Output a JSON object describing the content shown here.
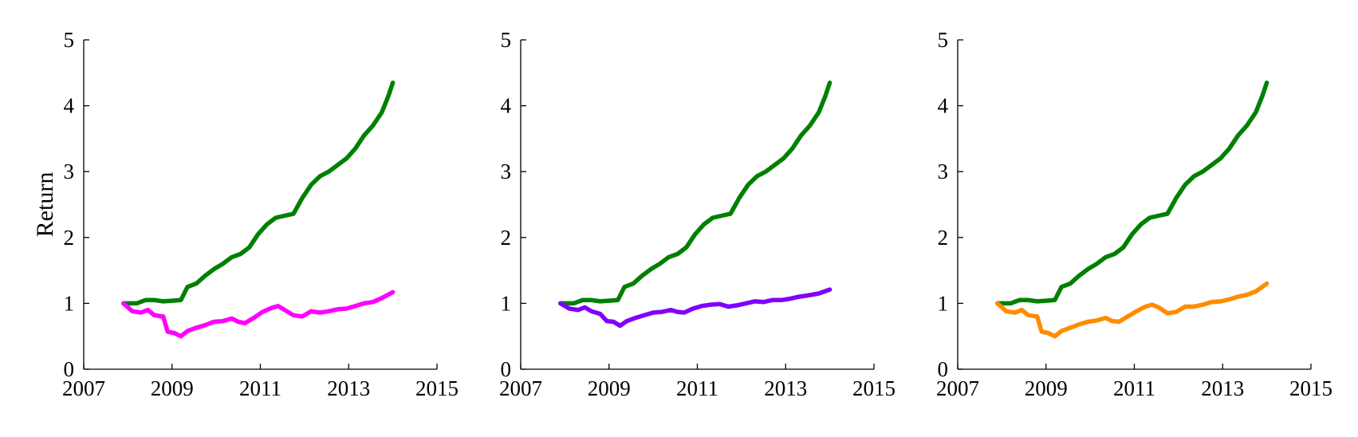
{
  "chart_data": [
    {
      "type": "line",
      "ylabel": "Return",
      "xlim": [
        2007,
        2015
      ],
      "ylim": [
        0,
        5
      ],
      "xticks": [
        "2007",
        "2009",
        "2011",
        "2013",
        "2015"
      ],
      "yticks": [
        "0",
        "1",
        "2",
        "3",
        "4",
        "5"
      ],
      "grid": false,
      "series": [
        {
          "color": "#008000",
          "points": [
            [
              2007.9,
              1.0
            ],
            [
              2008.2,
              1.0
            ],
            [
              2008.4,
              1.05
            ],
            [
              2008.6,
              1.05
            ],
            [
              2008.8,
              1.03
            ],
            [
              2009.0,
              1.04
            ],
            [
              2009.2,
              1.05
            ],
            [
              2009.35,
              1.25
            ],
            [
              2009.55,
              1.3
            ],
            [
              2009.75,
              1.42
            ],
            [
              2009.95,
              1.52
            ],
            [
              2010.15,
              1.6
            ],
            [
              2010.35,
              1.7
            ],
            [
              2010.55,
              1.75
            ],
            [
              2010.75,
              1.85
            ],
            [
              2010.95,
              2.05
            ],
            [
              2011.15,
              2.2
            ],
            [
              2011.35,
              2.3
            ],
            [
              2011.55,
              2.33
            ],
            [
              2011.75,
              2.36
            ],
            [
              2011.95,
              2.6
            ],
            [
              2012.15,
              2.8
            ],
            [
              2012.35,
              2.93
            ],
            [
              2012.55,
              3.0
            ],
            [
              2012.75,
              3.1
            ],
            [
              2012.95,
              3.2
            ],
            [
              2013.15,
              3.35
            ],
            [
              2013.35,
              3.55
            ],
            [
              2013.55,
              3.7
            ],
            [
              2013.75,
              3.9
            ],
            [
              2013.9,
              4.15
            ],
            [
              2014.0,
              4.35
            ]
          ]
        },
        {
          "color": "#ff00ff",
          "points": [
            [
              2007.9,
              1.0
            ],
            [
              2008.1,
              0.88
            ],
            [
              2008.3,
              0.86
            ],
            [
              2008.45,
              0.9
            ],
            [
              2008.6,
              0.82
            ],
            [
              2008.8,
              0.8
            ],
            [
              2008.9,
              0.57
            ],
            [
              2009.05,
              0.55
            ],
            [
              2009.2,
              0.5
            ],
            [
              2009.35,
              0.58
            ],
            [
              2009.55,
              0.63
            ],
            [
              2009.75,
              0.67
            ],
            [
              2009.95,
              0.72
            ],
            [
              2010.15,
              0.73
            ],
            [
              2010.35,
              0.77
            ],
            [
              2010.5,
              0.72
            ],
            [
              2010.65,
              0.7
            ],
            [
              2010.85,
              0.78
            ],
            [
              2011.05,
              0.87
            ],
            [
              2011.25,
              0.93
            ],
            [
              2011.4,
              0.96
            ],
            [
              2011.55,
              0.9
            ],
            [
              2011.75,
              0.82
            ],
            [
              2011.95,
              0.8
            ],
            [
              2012.15,
              0.88
            ],
            [
              2012.35,
              0.86
            ],
            [
              2012.55,
              0.88
            ],
            [
              2012.75,
              0.91
            ],
            [
              2012.95,
              0.92
            ],
            [
              2013.15,
              0.96
            ],
            [
              2013.35,
              1.0
            ],
            [
              2013.55,
              1.02
            ],
            [
              2013.75,
              1.08
            ],
            [
              2014.0,
              1.17
            ]
          ]
        }
      ]
    },
    {
      "type": "line",
      "ylabel": "",
      "xlim": [
        2007,
        2015
      ],
      "ylim": [
        0,
        5
      ],
      "xticks": [
        "2007",
        "2009",
        "2011",
        "2013",
        "2015"
      ],
      "yticks": [
        "0",
        "1",
        "2",
        "3",
        "4",
        "5"
      ],
      "grid": false,
      "series": [
        {
          "color": "#008000",
          "points": [
            [
              2007.9,
              1.0
            ],
            [
              2008.2,
              1.0
            ],
            [
              2008.4,
              1.05
            ],
            [
              2008.6,
              1.05
            ],
            [
              2008.8,
              1.03
            ],
            [
              2009.0,
              1.04
            ],
            [
              2009.2,
              1.05
            ],
            [
              2009.35,
              1.25
            ],
            [
              2009.55,
              1.3
            ],
            [
              2009.75,
              1.42
            ],
            [
              2009.95,
              1.52
            ],
            [
              2010.15,
              1.6
            ],
            [
              2010.35,
              1.7
            ],
            [
              2010.55,
              1.75
            ],
            [
              2010.75,
              1.85
            ],
            [
              2010.95,
              2.05
            ],
            [
              2011.15,
              2.2
            ],
            [
              2011.35,
              2.3
            ],
            [
              2011.55,
              2.33
            ],
            [
              2011.75,
              2.36
            ],
            [
              2011.95,
              2.6
            ],
            [
              2012.15,
              2.8
            ],
            [
              2012.35,
              2.93
            ],
            [
              2012.55,
              3.0
            ],
            [
              2012.75,
              3.1
            ],
            [
              2012.95,
              3.2
            ],
            [
              2013.15,
              3.35
            ],
            [
              2013.35,
              3.55
            ],
            [
              2013.55,
              3.7
            ],
            [
              2013.75,
              3.9
            ],
            [
              2013.9,
              4.15
            ],
            [
              2014.0,
              4.35
            ]
          ]
        },
        {
          "color": "#8000ff",
          "points": [
            [
              2007.9,
              1.0
            ],
            [
              2008.1,
              0.92
            ],
            [
              2008.3,
              0.9
            ],
            [
              2008.45,
              0.94
            ],
            [
              2008.6,
              0.88
            ],
            [
              2008.8,
              0.84
            ],
            [
              2008.95,
              0.73
            ],
            [
              2009.1,
              0.72
            ],
            [
              2009.25,
              0.66
            ],
            [
              2009.4,
              0.73
            ],
            [
              2009.6,
              0.78
            ],
            [
              2009.8,
              0.82
            ],
            [
              2010.0,
              0.86
            ],
            [
              2010.2,
              0.87
            ],
            [
              2010.4,
              0.9
            ],
            [
              2010.55,
              0.87
            ],
            [
              2010.7,
              0.86
            ],
            [
              2010.9,
              0.92
            ],
            [
              2011.1,
              0.96
            ],
            [
              2011.3,
              0.98
            ],
            [
              2011.5,
              0.99
            ],
            [
              2011.7,
              0.95
            ],
            [
              2011.9,
              0.97
            ],
            [
              2012.1,
              1.0
            ],
            [
              2012.3,
              1.03
            ],
            [
              2012.5,
              1.02
            ],
            [
              2012.7,
              1.05
            ],
            [
              2012.9,
              1.05
            ],
            [
              2013.1,
              1.07
            ],
            [
              2013.3,
              1.1
            ],
            [
              2013.5,
              1.12
            ],
            [
              2013.75,
              1.15
            ],
            [
              2014.0,
              1.21
            ]
          ]
        }
      ]
    },
    {
      "type": "line",
      "ylabel": "",
      "xlim": [
        2007,
        2015
      ],
      "ylim": [
        0,
        5
      ],
      "xticks": [
        "2007",
        "2009",
        "2011",
        "2013",
        "2015"
      ],
      "yticks": [
        "0",
        "1",
        "2",
        "3",
        "4",
        "5"
      ],
      "grid": false,
      "series": [
        {
          "color": "#008000",
          "points": [
            [
              2007.9,
              1.0
            ],
            [
              2008.2,
              1.0
            ],
            [
              2008.4,
              1.05
            ],
            [
              2008.6,
              1.05
            ],
            [
              2008.8,
              1.03
            ],
            [
              2009.0,
              1.04
            ],
            [
              2009.2,
              1.05
            ],
            [
              2009.35,
              1.25
            ],
            [
              2009.55,
              1.3
            ],
            [
              2009.75,
              1.42
            ],
            [
              2009.95,
              1.52
            ],
            [
              2010.15,
              1.6
            ],
            [
              2010.35,
              1.7
            ],
            [
              2010.55,
              1.75
            ],
            [
              2010.75,
              1.85
            ],
            [
              2010.95,
              2.05
            ],
            [
              2011.15,
              2.2
            ],
            [
              2011.35,
              2.3
            ],
            [
              2011.55,
              2.33
            ],
            [
              2011.75,
              2.36
            ],
            [
              2011.95,
              2.6
            ],
            [
              2012.15,
              2.8
            ],
            [
              2012.35,
              2.93
            ],
            [
              2012.55,
              3.0
            ],
            [
              2012.75,
              3.1
            ],
            [
              2012.95,
              3.2
            ],
            [
              2013.15,
              3.35
            ],
            [
              2013.35,
              3.55
            ],
            [
              2013.55,
              3.7
            ],
            [
              2013.75,
              3.9
            ],
            [
              2013.9,
              4.15
            ],
            [
              2014.0,
              4.35
            ]
          ]
        },
        {
          "color": "#ff8c00",
          "points": [
            [
              2007.9,
              1.0
            ],
            [
              2008.1,
              0.88
            ],
            [
              2008.3,
              0.86
            ],
            [
              2008.45,
              0.9
            ],
            [
              2008.6,
              0.82
            ],
            [
              2008.8,
              0.8
            ],
            [
              2008.9,
              0.57
            ],
            [
              2009.05,
              0.55
            ],
            [
              2009.2,
              0.5
            ],
            [
              2009.35,
              0.58
            ],
            [
              2009.55,
              0.63
            ],
            [
              2009.75,
              0.68
            ],
            [
              2009.95,
              0.72
            ],
            [
              2010.15,
              0.74
            ],
            [
              2010.35,
              0.78
            ],
            [
              2010.5,
              0.73
            ],
            [
              2010.65,
              0.72
            ],
            [
              2010.85,
              0.8
            ],
            [
              2011.05,
              0.88
            ],
            [
              2011.25,
              0.95
            ],
            [
              2011.4,
              0.98
            ],
            [
              2011.55,
              0.94
            ],
            [
              2011.75,
              0.85
            ],
            [
              2011.95,
              0.87
            ],
            [
              2012.15,
              0.95
            ],
            [
              2012.35,
              0.95
            ],
            [
              2012.55,
              0.98
            ],
            [
              2012.75,
              1.02
            ],
            [
              2012.95,
              1.03
            ],
            [
              2013.15,
              1.06
            ],
            [
              2013.35,
              1.1
            ],
            [
              2013.55,
              1.13
            ],
            [
              2013.75,
              1.18
            ],
            [
              2014.0,
              1.3
            ]
          ]
        }
      ]
    }
  ]
}
